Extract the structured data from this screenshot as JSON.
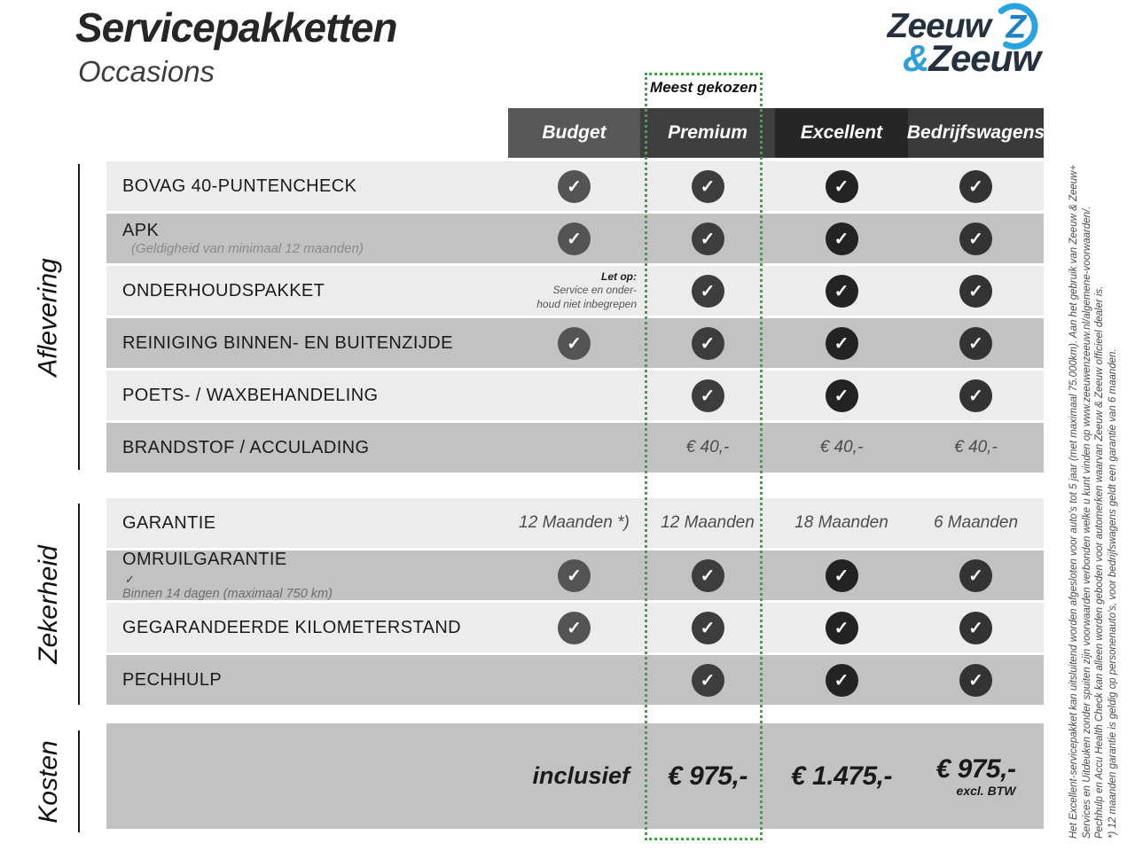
{
  "page": {
    "title": "Servicepakketten",
    "subtitle": "Occasions"
  },
  "logo": {
    "word1": "Zeeuw",
    "amp": "&",
    "word2": "Zeeuw"
  },
  "highlight": {
    "label": "Meest gekozen",
    "color": "#3fa347"
  },
  "columns": [
    {
      "label": "Budget",
      "header_color": "#575757",
      "check_color": "#545454"
    },
    {
      "label": "Premium",
      "header_color": "#3f3f3f",
      "check_color": "#3d3d3d"
    },
    {
      "label": "Excellent",
      "header_color": "#262626",
      "check_color": "#232323"
    },
    {
      "label": "Bedrijfswagens",
      "header_color": "#3a3a3a",
      "check_color": "#333333"
    }
  ],
  "sections": [
    {
      "label": "Aflevering",
      "rows": [
        {
          "label": "BOVAG 40-PUNTENCHECK",
          "cells": [
            {
              "type": "check"
            },
            {
              "type": "check"
            },
            {
              "type": "check"
            },
            {
              "type": "check"
            }
          ]
        },
        {
          "label": "APK",
          "label_note": "(Geldigheid van minimaal 12 maanden)",
          "cells": [
            {
              "type": "check"
            },
            {
              "type": "check"
            },
            {
              "type": "check"
            },
            {
              "type": "check"
            }
          ]
        },
        {
          "label": "ONDERHOUDSPAKKET",
          "cells": [
            {
              "type": "note",
              "bold": "Let op:",
              "line1": "Service en onder-",
              "line2": "houd niet inbegrepen"
            },
            {
              "type": "check"
            },
            {
              "type": "check"
            },
            {
              "type": "check"
            }
          ]
        },
        {
          "label": "REINIGING BINNEN- EN BUITENZIJDE",
          "cells": [
            {
              "type": "check"
            },
            {
              "type": "check"
            },
            {
              "type": "check"
            },
            {
              "type": "check"
            }
          ]
        },
        {
          "label": "POETS- / WAXBEHANDELING",
          "cells": [
            {
              "type": "empty"
            },
            {
              "type": "check"
            },
            {
              "type": "check"
            },
            {
              "type": "check"
            }
          ]
        },
        {
          "label": "BRANDSTOF / ACCULADING",
          "cells": [
            {
              "type": "empty"
            },
            {
              "type": "text",
              "value": "€ 40,-"
            },
            {
              "type": "text",
              "value": "€ 40,-"
            },
            {
              "type": "text",
              "value": "€ 40,-"
            }
          ]
        }
      ]
    },
    {
      "label": "Zekerheid",
      "rows": [
        {
          "label": "GARANTIE",
          "cells": [
            {
              "type": "text",
              "value": "12 Maanden *)"
            },
            {
              "type": "text",
              "value": "12 Maanden"
            },
            {
              "type": "text",
              "value": "18 Maanden"
            },
            {
              "type": "text",
              "value": "6 Maanden"
            }
          ]
        },
        {
          "label": "OMRUILGARANTIE",
          "sub_check": "✓",
          "sub_note": "Binnen 14 dagen (maximaal 750 km)",
          "cells": [
            {
              "type": "check"
            },
            {
              "type": "check"
            },
            {
              "type": "check"
            },
            {
              "type": "check"
            }
          ]
        },
        {
          "label": "GEGARANDEERDE KILOMETERSTAND",
          "cells": [
            {
              "type": "check"
            },
            {
              "type": "check"
            },
            {
              "type": "check"
            },
            {
              "type": "check"
            }
          ]
        },
        {
          "label": "PECHHULP",
          "cells": [
            {
              "type": "empty"
            },
            {
              "type": "check"
            },
            {
              "type": "check"
            },
            {
              "type": "check"
            }
          ]
        }
      ]
    },
    {
      "label": "Kosten",
      "rows": [
        {
          "label": "",
          "cells": [
            {
              "type": "price_label",
              "value": "inclusief"
            },
            {
              "type": "price",
              "value": "€ 975,-"
            },
            {
              "type": "price",
              "value": "€ 1.475,-"
            },
            {
              "type": "price",
              "value": "€ 975,-",
              "note": "excl. BTW"
            }
          ]
        }
      ]
    }
  ],
  "check_glyph": "✓",
  "footnotes": [
    "Het Excellent-servicepakket kan uitsluitend worden afgesloten voor auto's tot 5 jaar (met maximaal 75.000km). Aan het gebruik van Zeeuw & Zeeuw+",
    "Services en Uitdeuken zonder spuiten zijn voorwaarden verbonden welke u kunt vinden op www.zeeuwenzeeuw.nl/algemene-voorwaarden/.",
    "Pechhulp en Accu Health Check kan alleen worden geboden voor automerken waarvan Zeeuw & Zeeuw officieel dealer is.",
    "*) 12 maanden garantie is geldig op personenauto's, voor bedrijfswagens geldt een garantie van 6 maanden."
  ]
}
